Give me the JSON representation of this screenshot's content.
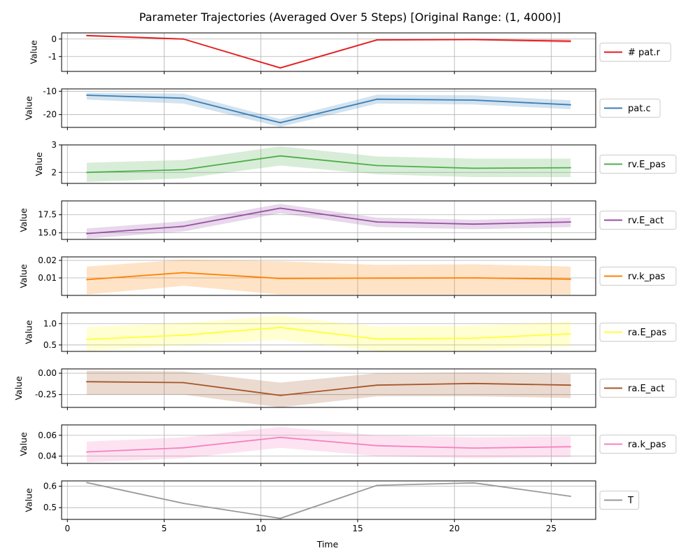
{
  "chart_data": {
    "type": "line",
    "title": "Parameter Trajectories (Averaged Over 5 Steps) [Original Range: (1, 4000)]",
    "xlabel": "Time",
    "xlim": [
      -0.3,
      27.3
    ],
    "xticks": [
      0,
      5,
      10,
      15,
      20,
      25
    ],
    "x": [
      1,
      6,
      11,
      16,
      21,
      26
    ],
    "grid": true,
    "legend": "right of each panel",
    "panels": [
      {
        "name": "# pat.r",
        "color": "#e41a1c",
        "ylabel": "Value",
        "ylim": [
          -1.85,
          0.35
        ],
        "yticks": [
          0,
          -1
        ],
        "values": [
          0.2,
          0.0,
          -1.65,
          -0.05,
          -0.03,
          -0.12
        ],
        "lower": [
          0.15,
          -0.04,
          -1.7,
          -0.1,
          -0.08,
          -0.22
        ],
        "upper": [
          0.25,
          0.04,
          -1.6,
          0.0,
          0.02,
          -0.02
        ]
      },
      {
        "name": "pat.c",
        "color": "#377eb8",
        "ylabel": "Value",
        "ylim": [
          -25.5,
          -9.0
        ],
        "yticks": [
          -10,
          -20
        ],
        "values": [
          -11.7,
          -13.0,
          -23.5,
          -13.4,
          -13.8,
          -15.8
        ],
        "lower": [
          -13.6,
          -15.3,
          -25.3,
          -15.3,
          -15.7,
          -17.7
        ],
        "upper": [
          -10.6,
          -11.0,
          -21.9,
          -11.5,
          -11.8,
          -13.9
        ]
      },
      {
        "name": "rv.E_pas",
        "color": "#4daf4a",
        "ylabel": "Value",
        "ylim": [
          1.6,
          3.0
        ],
        "yticks": [
          3,
          2
        ],
        "values": [
          2.0,
          2.1,
          2.6,
          2.25,
          2.15,
          2.17
        ],
        "lower": [
          1.65,
          1.78,
          2.25,
          1.93,
          1.83,
          1.83
        ],
        "upper": [
          2.35,
          2.45,
          2.95,
          2.58,
          2.5,
          2.5
        ]
      },
      {
        "name": "rv.E_act",
        "color": "#984ea3",
        "ylabel": "Value",
        "ylim": [
          14.1,
          19.4
        ],
        "yticks": [
          17.5,
          15.0
        ],
        "values": [
          14.9,
          15.9,
          18.4,
          16.5,
          16.2,
          16.5
        ],
        "lower": [
          14.2,
          15.2,
          17.7,
          15.8,
          15.5,
          15.8
        ],
        "upper": [
          15.6,
          16.6,
          19.0,
          17.1,
          16.8,
          17.1
        ]
      },
      {
        "name": "rv.k_pas",
        "color": "#ff7f00",
        "ylabel": "Value",
        "ylim": [
          0.0,
          0.022
        ],
        "yticks": [
          0.02,
          0.01
        ],
        "values": [
          0.009,
          0.013,
          0.0097,
          0.0099,
          0.01,
          0.0093
        ],
        "lower": [
          0.0005,
          0.0055,
          0.0005,
          0.0005,
          0.0005,
          0.0005
        ],
        "upper": [
          0.0165,
          0.0205,
          0.0195,
          0.0175,
          0.0178,
          0.0165
        ]
      },
      {
        "name": "ra.E_pas",
        "color": "#ffff33",
        "ylabel": "Value",
        "ylim": [
          0.35,
          1.25
        ],
        "yticks": [
          1.0,
          0.5
        ],
        "values": [
          0.63,
          0.73,
          0.91,
          0.64,
          0.66,
          0.76
        ],
        "lower": [
          0.36,
          0.5,
          0.62,
          0.36,
          0.37,
          0.47
        ],
        "upper": [
          0.92,
          1.02,
          1.18,
          0.93,
          0.95,
          1.05
        ]
      },
      {
        "name": "ra.E_act",
        "color": "#a65628",
        "ylabel": "Value",
        "ylim": [
          -0.4,
          0.05
        ],
        "yticks": [
          0.0,
          -0.25
        ],
        "values": [
          -0.1,
          -0.11,
          -0.26,
          -0.14,
          -0.12,
          -0.14
        ],
        "lower": [
          -0.25,
          -0.25,
          -0.4,
          -0.27,
          -0.27,
          -0.29
        ],
        "upper": [
          0.03,
          0.02,
          -0.11,
          0.0,
          0.01,
          -0.01
        ]
      },
      {
        "name": "ra.k_pas",
        "color": "#f781bf",
        "ylabel": "Value",
        "ylim": [
          0.033,
          0.07
        ],
        "yticks": [
          0.06,
          0.04
        ],
        "values": [
          0.044,
          0.048,
          0.058,
          0.05,
          0.0477,
          0.049
        ],
        "lower": [
          0.034,
          0.038,
          0.048,
          0.04,
          0.038,
          0.039
        ],
        "upper": [
          0.054,
          0.058,
          0.068,
          0.06,
          0.058,
          0.059
        ]
      },
      {
        "name": "T",
        "color": "#999999",
        "ylabel": "Value",
        "ylim": [
          0.445,
          0.625
        ],
        "yticks": [
          0.6,
          0.5
        ],
        "values": [
          0.617,
          0.52,
          0.45,
          0.604,
          0.616,
          0.553
        ],
        "lower": [
          0.617,
          0.52,
          0.45,
          0.604,
          0.616,
          0.553
        ],
        "upper": [
          0.617,
          0.52,
          0.45,
          0.604,
          0.616,
          0.553
        ]
      }
    ]
  }
}
